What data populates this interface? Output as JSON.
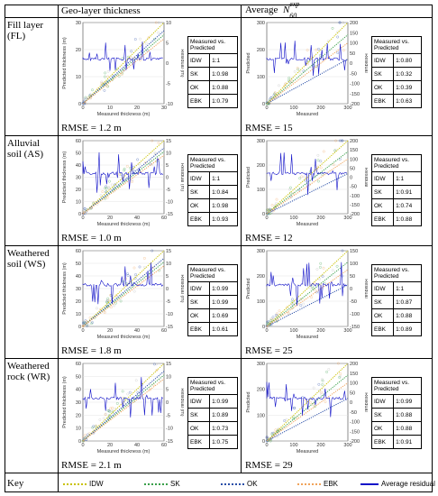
{
  "headers": {
    "col1": "Geo-layer thickness",
    "col2_prefix": "Average",
    "n_main": "N",
    "n_sub": "60",
    "n_sup": "exp"
  },
  "colors": {
    "IDW": "#c9c200",
    "SK": "#3aa04a",
    "OK": "#2a4fa8",
    "EBK": "#f0a35a",
    "avg": "#1010c8"
  },
  "rows": [
    {
      "label": "Fill layer (FL)",
      "thickness": {
        "xlabel": "Measured thickness (m)",
        "ylabel": "Predicted thickness (m)",
        "y2label": "Residual (m)",
        "xticks": [
          "0",
          "10",
          "20",
          "30"
        ],
        "yticks": [
          "30",
          "20",
          "10",
          "0"
        ],
        "y2ticks": [
          "10",
          "5",
          "0",
          "-5",
          "-10"
        ],
        "table": {
          "head": "Measured vs. Predicted",
          "rows": [
            [
              "IDW",
              "1:1"
            ],
            [
              "SK",
              "1:0.98"
            ],
            [
              "OK",
              "1:0.88"
            ],
            [
              "EBK",
              "1:0.79"
            ]
          ]
        },
        "rmse": "RMSE = 1.2 m"
      },
      "n60": {
        "xlabel": "Measured",
        "ylabel": "Predicted",
        "y2label": "Residual",
        "xticks": [
          "0",
          "100",
          "200",
          "300"
        ],
        "yticks": [
          "300",
          "200",
          "100",
          "0"
        ],
        "y2ticks": [
          "200",
          "150",
          "100",
          "50",
          "0",
          "-50",
          "-100",
          "-150",
          "-200"
        ],
        "table": {
          "head": "Measured vs. Predicted",
          "rows": [
            [
              "IDW",
              "1:0.80"
            ],
            [
              "SK",
              "1:0.32"
            ],
            [
              "OK",
              "1:0.39"
            ],
            [
              "EBK",
              "1:0.63"
            ]
          ]
        },
        "rmse": "RMSE = 15"
      }
    },
    {
      "label": "Alluvial soil (AS)",
      "thickness": {
        "xlabel": "Measured thickness (m)",
        "ylabel": "Predicted thickness (m)",
        "y2label": "Residual (m)",
        "xticks": [
          "0",
          "20",
          "40",
          "60"
        ],
        "yticks": [
          "60",
          "50",
          "40",
          "30",
          "20",
          "10",
          "0"
        ],
        "y2ticks": [
          "15",
          "10",
          "5",
          "0",
          "-5",
          "-10",
          "-15"
        ],
        "table": {
          "head": "Measured vs. Predicted",
          "rows": [
            [
              "IDW",
              "1:1"
            ],
            [
              "SK",
              "1:0.84"
            ],
            [
              "OK",
              "1:0.98"
            ],
            [
              "EBK",
              "1:0.93"
            ]
          ]
        },
        "rmse": "RMSE = 1.0 m"
      },
      "n60": {
        "xlabel": "Measured",
        "ylabel": "Predicted",
        "y2label": "Residual",
        "xticks": [
          "0",
          "100",
          "200",
          "300"
        ],
        "yticks": [
          "300",
          "200",
          "100",
          "0"
        ],
        "y2ticks": [
          "200",
          "150",
          "100",
          "50",
          "0",
          "-50",
          "-100",
          "-150",
          "-200"
        ],
        "table": {
          "head": "Measured vs. Predicted",
          "rows": [
            [
              "IDW",
              "1:1"
            ],
            [
              "SK",
              "1:0.91"
            ],
            [
              "OK",
              "1:0.74"
            ],
            [
              "EBK",
              "1:0.88"
            ]
          ]
        },
        "rmse": "RMSE = 12"
      }
    },
    {
      "label": "Weathered soil (WS)",
      "thickness": {
        "xlabel": "Measured thickness (m)",
        "ylabel": "Predicted thickness (m)",
        "y2label": "Residual (m)",
        "xticks": [
          "0",
          "20",
          "40",
          "60"
        ],
        "yticks": [
          "60",
          "50",
          "40",
          "30",
          "20",
          "10",
          "0"
        ],
        "y2ticks": [
          "15",
          "10",
          "5",
          "0",
          "-5",
          "-10",
          "-15"
        ],
        "table": {
          "head": "Measured vs. Predicted",
          "rows": [
            [
              "IDW",
              "1:0.99"
            ],
            [
              "SK",
              "1:0.99"
            ],
            [
              "OK",
              "1:0.69"
            ],
            [
              "EBK",
              "1:0.61"
            ]
          ]
        },
        "rmse": "RMSE = 1.8 m"
      },
      "n60": {
        "xlabel": "Measured",
        "ylabel": "Predicted",
        "y2label": "Residual",
        "xticks": [
          "0",
          "100",
          "200",
          "300"
        ],
        "yticks": [
          "300",
          "200",
          "100",
          "0"
        ],
        "y2ticks": [
          "150",
          "100",
          "50",
          "0",
          "-50",
          "-100",
          "-150"
        ],
        "table": {
          "head": "Measured vs. Predicted",
          "rows": [
            [
              "IDW",
              "1:1"
            ],
            [
              "SK",
              "1:0.87"
            ],
            [
              "OK",
              "1:0.88"
            ],
            [
              "EBK",
              "1:0.89"
            ]
          ]
        },
        "rmse": "RMSE = 25"
      }
    },
    {
      "label": "Weathered rock (WR)",
      "thickness": {
        "xlabel": "Measured thickness (m)",
        "ylabel": "Predicted thickness (m)",
        "y2label": "Residual (m)",
        "xticks": [
          "0",
          "20",
          "40",
          "60"
        ],
        "yticks": [
          "60",
          "50",
          "40",
          "30",
          "20",
          "10",
          "0"
        ],
        "y2ticks": [
          "15",
          "10",
          "5",
          "0",
          "-5",
          "-10",
          "-15"
        ],
        "table": {
          "head": "Measured vs. Predicted",
          "rows": [
            [
              "IDW",
              "1:0.99"
            ],
            [
              "SK",
              "1:0.89"
            ],
            [
              "OK",
              "1:0.73"
            ],
            [
              "EBK",
              "1:0.75"
            ]
          ]
        },
        "rmse": "RMSE = 2.1 m"
      },
      "n60": {
        "xlabel": "Measured",
        "ylabel": "Predicted",
        "y2label": "Residual",
        "xticks": [
          "0",
          "100",
          "200",
          "300"
        ],
        "yticks": [
          "300",
          "200",
          "100",
          "0"
        ],
        "y2ticks": [
          "200",
          "150",
          "100",
          "50",
          "0",
          "-50",
          "-100",
          "-150",
          "-200"
        ],
        "table": {
          "head": "Measured vs. Predicted",
          "rows": [
            [
              "IDW",
              "1:0.99"
            ],
            [
              "SK",
              "1:0.88"
            ],
            [
              "OK",
              "1:0.88"
            ],
            [
              "EBK",
              "1:0.91"
            ]
          ]
        },
        "rmse": "RMSE = 29"
      }
    }
  ],
  "key": {
    "label": "Key",
    "items": [
      {
        "name": "IDW",
        "style": "dotted",
        "color": "#c9c200"
      },
      {
        "name": "SK",
        "style": "dotted",
        "color": "#3aa04a"
      },
      {
        "name": "OK",
        "style": "dotted",
        "color": "#2a4fa8"
      },
      {
        "name": "EBK",
        "style": "dotted",
        "color": "#f0a35a"
      },
      {
        "name": "Average residual",
        "style": "solid",
        "color": "#1010c8"
      }
    ]
  }
}
